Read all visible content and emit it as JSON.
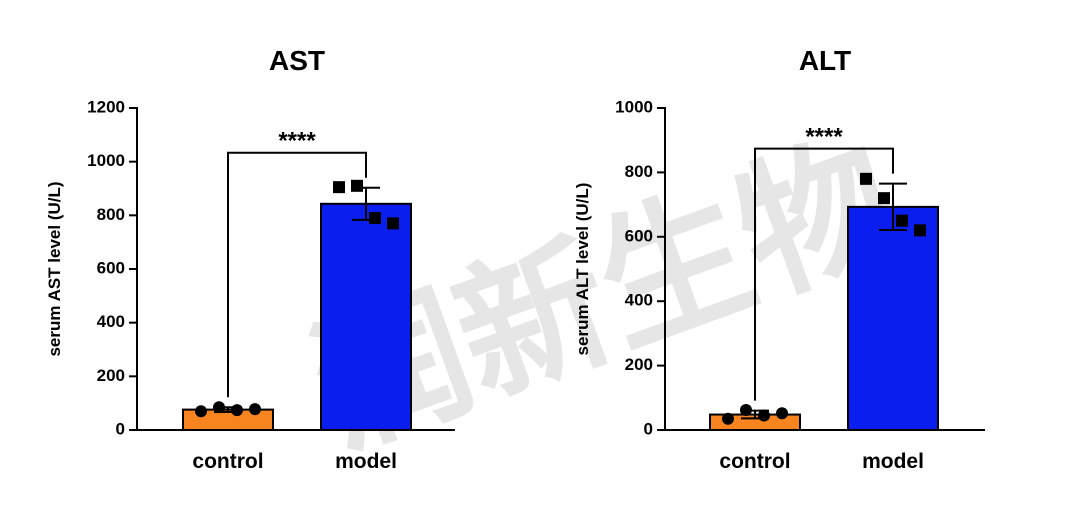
{
  "watermark": "润新生物",
  "chart_data": [
    {
      "type": "bar",
      "title": "AST",
      "ylabel": "serum AST level (U/L)",
      "categories": [
        "control",
        "model"
      ],
      "values": [
        76,
        843
      ],
      "errors": [
        9,
        60
      ],
      "points": [
        [
          70,
          85,
          74,
          78
        ],
        [
          905,
          910,
          790,
          770
        ]
      ],
      "colors": [
        "#f7841f",
        "#0a1ef0"
      ],
      "annotation": "****",
      "ylim": [
        0,
        1200
      ],
      "yticks": [
        0,
        200,
        400,
        600,
        800,
        1000,
        1200
      ]
    },
    {
      "type": "bar",
      "title": "ALT",
      "ylabel": "serum ALT level (U/L)",
      "categories": [
        "control",
        "model"
      ],
      "values": [
        48,
        693
      ],
      "errors": [
        12,
        72
      ],
      "points": [
        [
          35,
          62,
          45,
          52
        ],
        [
          780,
          720,
          650,
          620
        ]
      ],
      "colors": [
        "#f7841f",
        "#0a1ef0"
      ],
      "annotation": "****",
      "ylim": [
        0,
        1000
      ],
      "yticks": [
        0,
        200,
        400,
        600,
        800,
        1000
      ]
    }
  ]
}
